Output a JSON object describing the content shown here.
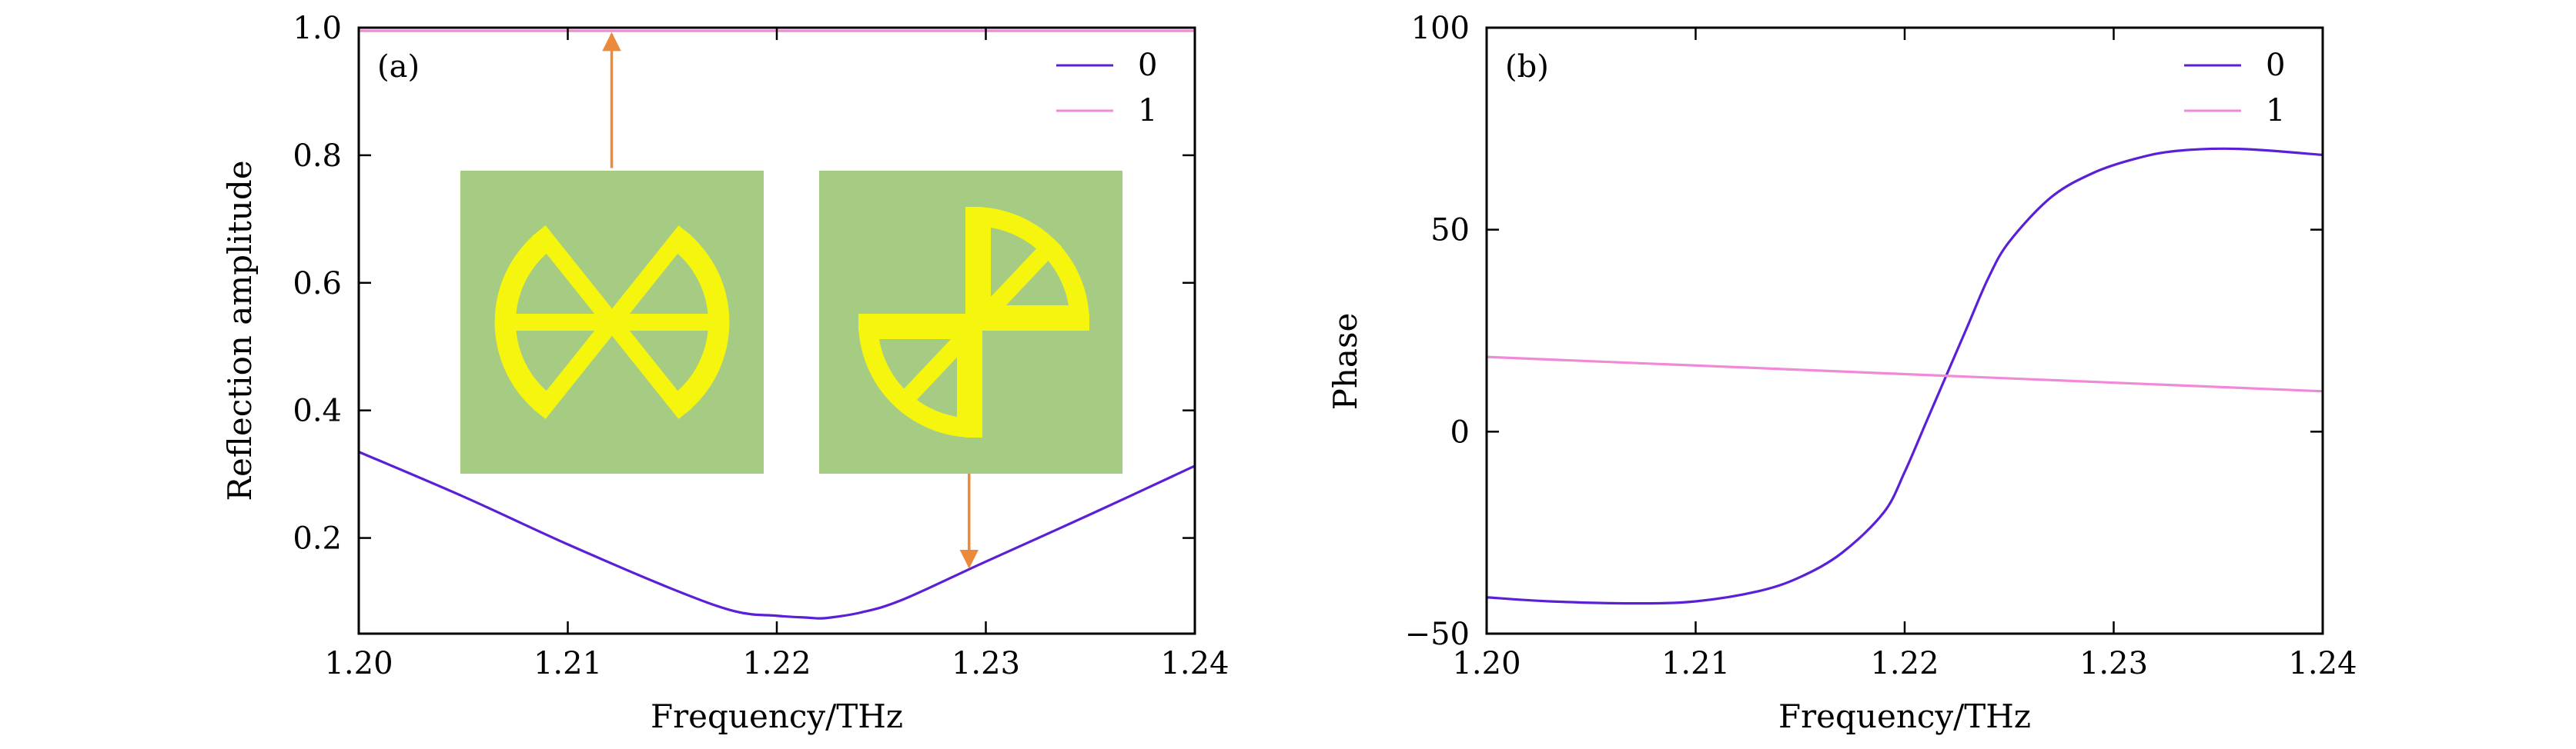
{
  "colors": {
    "series0": "#5a1fd6",
    "series1": "#f08ad8",
    "arrow": "#ea8a3a",
    "inset_bg": "#a6cc84",
    "inset_shape": "#f6f50d"
  },
  "chart_data": [
    {
      "id": "a",
      "type": "line",
      "panel_label": "(a)",
      "xlabel": "Frequency/THz",
      "ylabel": "Reflection amplitude",
      "xlim": [
        1.2,
        1.24
      ],
      "ylim": [
        0.05,
        1.0
      ],
      "xticks": [
        1.2,
        1.21,
        1.22,
        1.23,
        1.24
      ],
      "xtick_labels": [
        "1.20",
        "1.21",
        "1.22",
        "1.23",
        "1.24"
      ],
      "yticks": [
        0.2,
        0.4,
        0.6,
        0.8,
        1.0
      ],
      "ytick_labels": [
        "0.2",
        "0.4",
        "0.6",
        "0.8",
        "1.0"
      ],
      "legend_position": "top-right",
      "grid": false,
      "series": [
        {
          "name": "0",
          "x": [
            1.2,
            1.205,
            1.21,
            1.215,
            1.218,
            1.22,
            1.2215,
            1.222,
            1.2225,
            1.224,
            1.226,
            1.23,
            1.235,
            1.24
          ],
          "y": [
            0.335,
            0.265,
            0.19,
            0.12,
            0.085,
            0.078,
            0.075,
            0.074,
            0.075,
            0.083,
            0.103,
            0.163,
            0.237,
            0.313
          ]
        },
        {
          "name": "1",
          "x": [
            1.2,
            1.24
          ],
          "y": [
            0.995,
            0.995
          ]
        }
      ],
      "annotations": [
        {
          "type": "arrow",
          "from": [
            1.2121,
            0.78
          ],
          "to": [
            1.2121,
            0.99
          ]
        },
        {
          "type": "arrow",
          "from": [
            1.2292,
            0.6
          ],
          "to": [
            1.2292,
            0.155
          ]
        }
      ]
    },
    {
      "id": "b",
      "type": "line",
      "panel_label": "(b)",
      "xlabel": "Frequency/THz",
      "ylabel": "Phase",
      "xlim": [
        1.2,
        1.24
      ],
      "ylim": [
        -50,
        100
      ],
      "xticks": [
        1.2,
        1.21,
        1.22,
        1.23,
        1.24
      ],
      "xtick_labels": [
        "1.20",
        "1.21",
        "1.22",
        "1.23",
        "1.24"
      ],
      "yticks": [
        -50,
        0,
        50,
        100
      ],
      "ytick_labels": [
        "−50",
        "0",
        "50",
        "100"
      ],
      "legend_position": "top-right",
      "grid": false,
      "series": [
        {
          "name": "0",
          "x": [
            1.2,
            1.203,
            1.207,
            1.21,
            1.213,
            1.215,
            1.217,
            1.219,
            1.22,
            1.221,
            1.2215,
            1.222,
            1.223,
            1.224,
            1.225,
            1.227,
            1.229,
            1.231,
            1.233,
            1.236,
            1.24
          ],
          "y": [
            -41,
            -42,
            -42.5,
            -42,
            -39.5,
            -36,
            -30,
            -20,
            -10,
            2,
            8,
            14,
            26,
            38,
            47,
            58,
            64,
            67.5,
            69.5,
            70,
            68.5
          ]
        },
        {
          "name": "1",
          "x": [
            1.2,
            1.24
          ],
          "y": [
            18.5,
            10
          ]
        }
      ]
    }
  ]
}
